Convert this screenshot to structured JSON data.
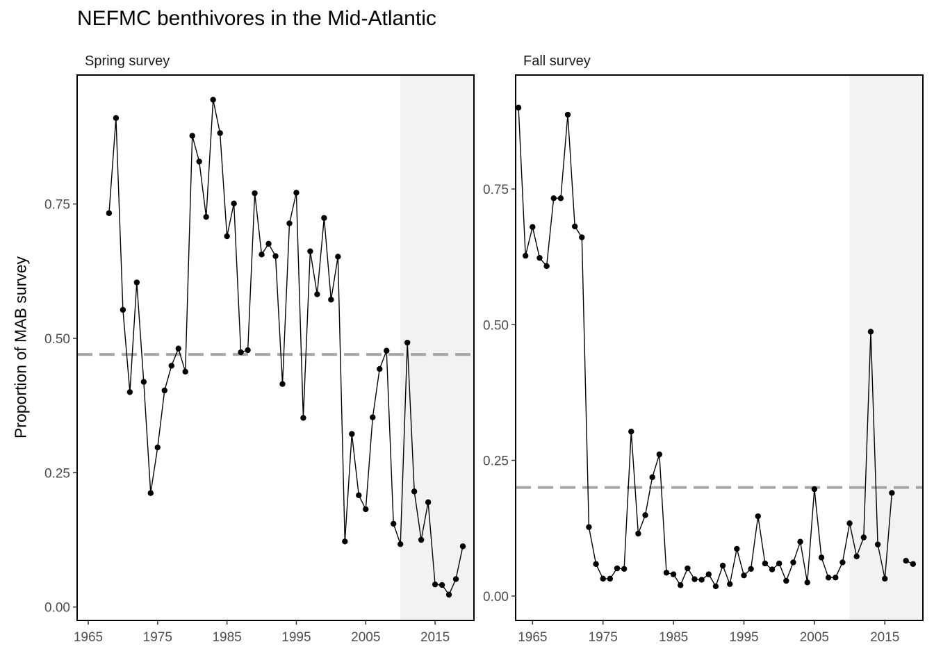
{
  "title": "NEFMC benthivores in the Mid-Atlantic",
  "ylabel": "Proportion of MAB survey",
  "colors": {
    "line": "#000000",
    "point": "#000000",
    "mean_line": "#a6a6a6",
    "shade": "#f2f2f2",
    "axis": "#333333",
    "tick_label": "#4d4d4d"
  },
  "chart_data": [
    {
      "type": "line",
      "panel": "Spring survey",
      "xlim": [
        1963.4,
        2020.6
      ],
      "ylim": [
        -0.025,
        0.99
      ],
      "xticks": [
        1965,
        1975,
        1985,
        1995,
        2005,
        2015
      ],
      "yticks": [
        0.0,
        0.25,
        0.5,
        0.75
      ],
      "ytick_labels": [
        "0.00",
        "0.25",
        "0.50",
        "0.75"
      ],
      "mean": 0.47,
      "shaded_from": 2010,
      "x": [
        1968,
        1969,
        1970,
        1971,
        1972,
        1973,
        1974,
        1975,
        1976,
        1977,
        1978,
        1979,
        1980,
        1981,
        1982,
        1983,
        1984,
        1985,
        1986,
        1987,
        1988,
        1989,
        1990,
        1991,
        1992,
        1993,
        1994,
        1995,
        1996,
        1997,
        1998,
        1999,
        2000,
        2001,
        2002,
        2003,
        2004,
        2005,
        2006,
        2007,
        2008,
        2009,
        2010,
        2011,
        2012,
        2013,
        2014,
        2015,
        2016,
        2017,
        2018,
        2019
      ],
      "y": [
        0.733,
        0.91,
        0.553,
        0.4,
        0.604,
        0.419,
        0.212,
        0.297,
        0.403,
        0.449,
        0.481,
        0.438,
        0.877,
        0.829,
        0.726,
        0.944,
        0.882,
        0.69,
        0.751,
        0.474,
        0.478,
        0.77,
        0.656,
        0.676,
        0.653,
        0.415,
        0.714,
        0.771,
        0.352,
        0.662,
        0.582,
        0.724,
        0.572,
        0.652,
        0.122,
        0.322,
        0.208,
        0.182,
        0.353,
        0.443,
        0.477,
        0.155,
        0.117,
        0.492,
        0.215,
        0.125,
        0.195,
        0.042,
        0.041,
        0.023,
        0.052,
        0.113
      ],
      "segments": [
        [
          0,
          51
        ]
      ]
    },
    {
      "type": "line",
      "panel": "Fall survey",
      "xlim": [
        1962.6,
        2020.4
      ],
      "ylim": [
        -0.045,
        0.96
      ],
      "xticks": [
        1965,
        1975,
        1985,
        1995,
        2005,
        2015
      ],
      "yticks": [
        0.0,
        0.25,
        0.5,
        0.75
      ],
      "ytick_labels": [
        "0.00",
        "0.25",
        "0.50",
        "0.75"
      ],
      "mean": 0.2,
      "shaded_from": 2010,
      "x": [
        1963,
        1964,
        1965,
        1966,
        1967,
        1968,
        1969,
        1970,
        1971,
        1972,
        1973,
        1974,
        1975,
        1976,
        1977,
        1978,
        1979,
        1980,
        1981,
        1982,
        1983,
        1984,
        1985,
        1986,
        1987,
        1988,
        1989,
        1990,
        1991,
        1992,
        1993,
        1994,
        1995,
        1996,
        1997,
        1998,
        1999,
        2000,
        2001,
        2002,
        2003,
        2004,
        2005,
        2006,
        2007,
        2008,
        2009,
        2010,
        2011,
        2012,
        2013,
        2014,
        2015,
        2016,
        2018,
        2019
      ],
      "y": [
        0.9,
        0.627,
        0.68,
        0.623,
        0.608,
        0.733,
        0.733,
        0.887,
        0.681,
        0.661,
        0.127,
        0.059,
        0.032,
        0.032,
        0.051,
        0.05,
        0.303,
        0.115,
        0.149,
        0.219,
        0.261,
        0.043,
        0.04,
        0.02,
        0.051,
        0.031,
        0.03,
        0.04,
        0.018,
        0.056,
        0.022,
        0.087,
        0.038,
        0.05,
        0.147,
        0.06,
        0.049,
        0.06,
        0.028,
        0.062,
        0.1,
        0.025,
        0.197,
        0.071,
        0.034,
        0.034,
        0.062,
        0.134,
        0.073,
        0.108,
        0.487,
        0.095,
        0.032,
        0.19,
        0.065,
        0.059
      ],
      "segments": [
        [
          0,
          53
        ],
        [
          54,
          55
        ]
      ]
    }
  ]
}
